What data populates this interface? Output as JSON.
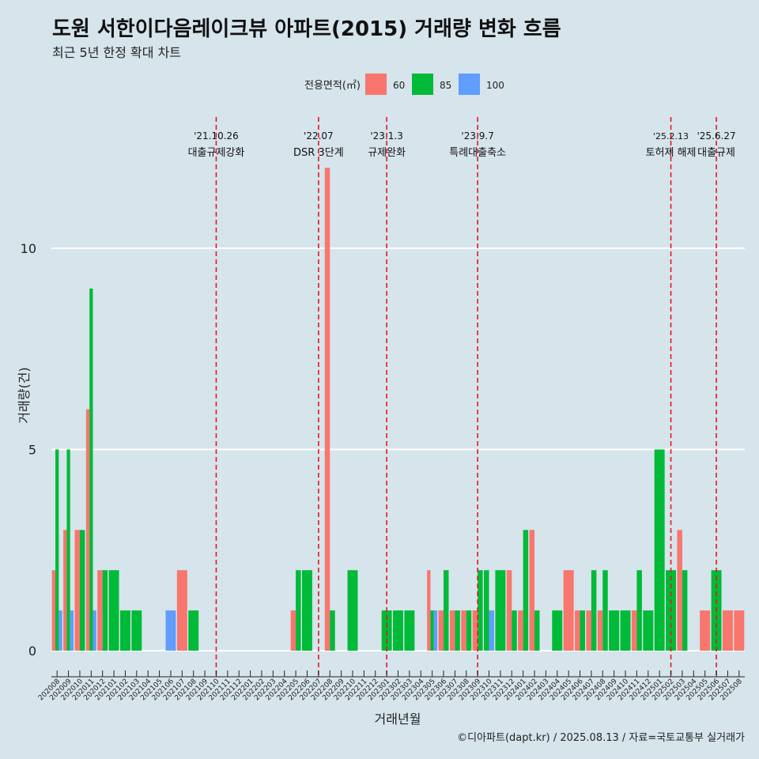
{
  "title": "도원 서한이다음레이크뷰 아파트(2015) 거래량 변화 흐름",
  "subtitle": "최근 5년 한정 확대 차트",
  "caption": "©디아파트(dapt.kr) / 2025.08.13 / 자료=국토교통부 실거래가",
  "chart_data": {
    "type": "bar",
    "xlabel": "거래년월",
    "ylabel": "거래량(건)",
    "ylim": [
      0,
      12
    ],
    "yticks": [
      0,
      5,
      10
    ],
    "legend": {
      "title": "전용면적(㎡)",
      "position": "top"
    },
    "categories": [
      "202008",
      "202009",
      "202010",
      "202011",
      "202012",
      "202101",
      "202102",
      "202103",
      "202104",
      "202105",
      "202106",
      "202107",
      "202108",
      "202109",
      "202110",
      "202111",
      "202112",
      "202201",
      "202202",
      "202203",
      "202204",
      "202205",
      "202206",
      "202207",
      "202208",
      "202209",
      "202210",
      "202211",
      "202212",
      "202301",
      "202302",
      "202303",
      "202304",
      "202305",
      "202306",
      "202307",
      "202308",
      "202309",
      "202310",
      "202311",
      "202312",
      "202401",
      "202402",
      "202403",
      "202404",
      "202405",
      "202406",
      "202407",
      "202408",
      "202409",
      "202410",
      "202411",
      "202412",
      "202501",
      "202502",
      "202503",
      "202504",
      "202505",
      "202506",
      "202507",
      "202508"
    ],
    "series": [
      {
        "name": "60",
        "color": "#f8766d",
        "values": [
          2,
          3,
          3,
          6,
          2,
          0,
          0,
          0,
          0,
          0,
          0,
          2,
          0,
          0,
          0,
          0,
          0,
          0,
          0,
          0,
          0,
          1,
          0,
          0,
          12,
          0,
          0,
          0,
          0,
          0,
          0,
          0,
          0,
          2,
          1,
          1,
          1,
          1,
          0,
          0,
          2,
          1,
          3,
          0,
          0,
          2,
          1,
          1,
          1,
          0,
          0,
          1,
          0,
          0,
          0,
          3,
          0,
          1,
          0,
          1,
          1
        ]
      },
      {
        "name": "85",
        "color": "#00ba38",
        "values": [
          5,
          5,
          3,
          9,
          2,
          2,
          1,
          1,
          0,
          0,
          0,
          0,
          1,
          0,
          0,
          0,
          0,
          0,
          0,
          0,
          0,
          2,
          2,
          0,
          1,
          0,
          2,
          0,
          0,
          1,
          1,
          1,
          0,
          1,
          2,
          1,
          1,
          2,
          2,
          2,
          1,
          3,
          1,
          0,
          1,
          0,
          1,
          2,
          2,
          1,
          1,
          2,
          1,
          5,
          2,
          2,
          0,
          0,
          2,
          0,
          0
        ]
      },
      {
        "name": "100",
        "color": "#619cff",
        "values": [
          1,
          1,
          0,
          1,
          0,
          0,
          0,
          0,
          0,
          0,
          1,
          0,
          0,
          0,
          0,
          0,
          0,
          0,
          0,
          0,
          0,
          0,
          0,
          0,
          0,
          0,
          0,
          0,
          0,
          0,
          0,
          0,
          0,
          1,
          0,
          0,
          0,
          0,
          1,
          0,
          0,
          0,
          0,
          0,
          0,
          0,
          0,
          0,
          0,
          0,
          0,
          0,
          0,
          0,
          0,
          0,
          0,
          0,
          0,
          0,
          0
        ]
      }
    ],
    "events": [
      {
        "x": "202110",
        "date": "'21.10.26",
        "label": "대출규제강화"
      },
      {
        "x": "202207",
        "date": "'22.07",
        "label": "DSR 3단계"
      },
      {
        "x": "202301",
        "date": "'23.1.3",
        "label": "규제완화"
      },
      {
        "x": "202309",
        "date": "'23.9.7",
        "label": "특례대출축소"
      },
      {
        "x": "202502",
        "date": "'25.2.13",
        "label": "토허제 해제"
      },
      {
        "x": "202506",
        "date": "'25.6.27",
        "label": "대출규제"
      }
    ]
  }
}
